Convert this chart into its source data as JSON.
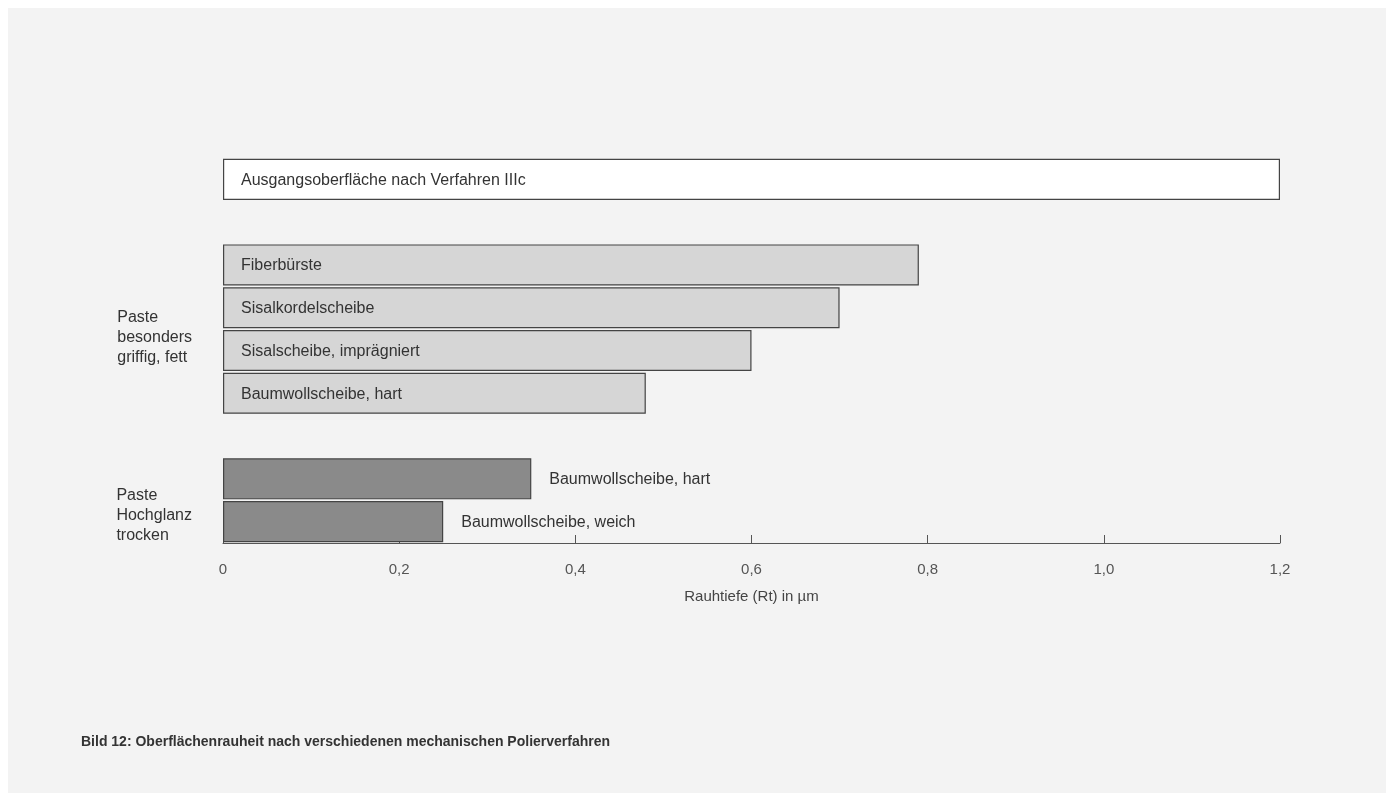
{
  "chart_data": {
    "type": "bar",
    "orientation": "horizontal",
    "title": "Bild 12: Oberflächenrauheit nach verschiedenen mechanischen Polierverfahren",
    "xlabel": "Rauhtiefe (Rt) in µm",
    "categories": [
      "Ausgangsoberfläche nach Verfahren IIIc",
      null,
      "Fiberbürste",
      "Sisalkordelscheibe",
      "Sisalscheibe, imprägniert",
      "Baumwollscheibe, hart",
      null,
      "Baumwollscheibe, hart",
      "Baumwollscheibe, weich"
    ],
    "values": [
      1.2,
      null,
      0.79,
      0.7,
      0.6,
      0.48,
      null,
      0.35,
      0.25
    ],
    "colors": [
      "#ffffff",
      null,
      "#d6d6d6",
      "#d6d6d6",
      "#d6d6d6",
      "#d6d6d6",
      null,
      "#8a8a8a",
      "#8a8a8a"
    ],
    "xlim": [
      0,
      1.2
    ],
    "xticks": [
      0,
      {
        "value": 0.2,
        "label": "0,2"
      },
      {
        "value": 0.4,
        "label": "0,4"
      },
      {
        "value": 0.6,
        "label": "0,6"
      },
      {
        "value": 0.8,
        "label": "0,8"
      },
      {
        "value": 1.0,
        "label": "1,0"
      },
      {
        "value": 1.2,
        "label": "1,2"
      }
    ],
    "annotations": [
      "Paste\nbesonders\ngriffig, fett",
      "Paste\nHochglanz\ntrocken"
    ],
    "grid": false
  }
}
